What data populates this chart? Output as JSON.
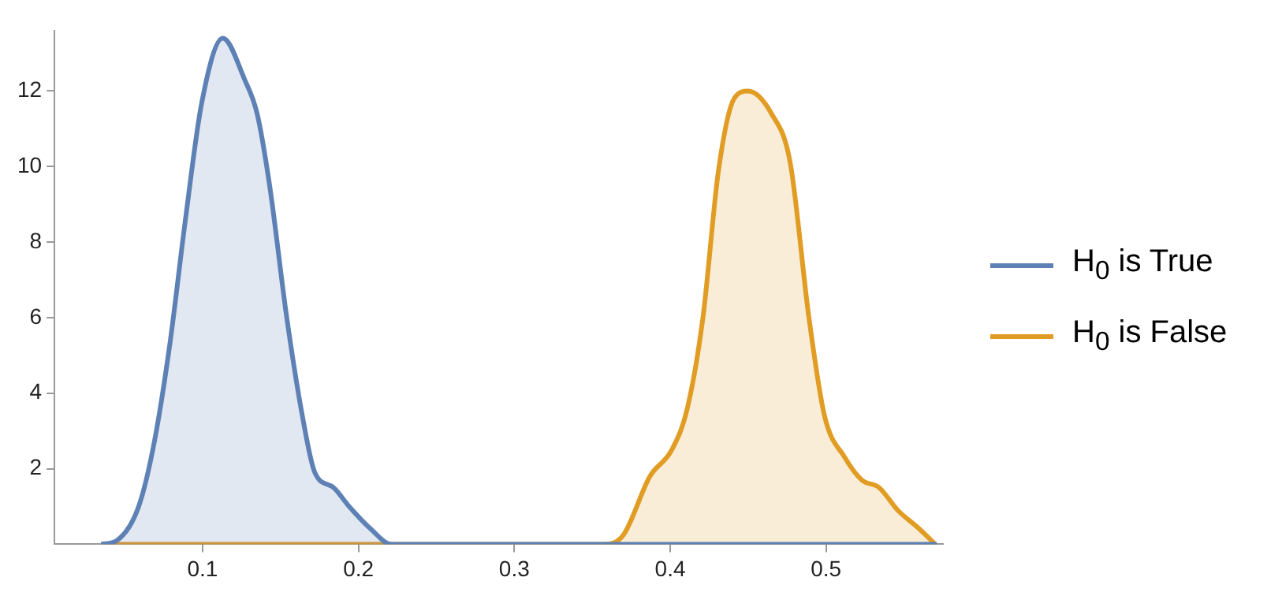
{
  "chart_data": {
    "type": "area",
    "xlim": [
      0.005,
      0.575
    ],
    "ylim": [
      0,
      13.6
    ],
    "xticks": [
      0.1,
      0.2,
      0.3,
      0.4,
      0.5
    ],
    "yticks": [
      2,
      4,
      6,
      8,
      10,
      12
    ],
    "grid": false,
    "legend": "right",
    "marker": "none",
    "line_style": "solid",
    "series": [
      {
        "name": "H$_{0}$ is True",
        "color": "#5e81b5",
        "x": [
          0.035,
          0.045,
          0.059,
          0.069,
          0.079,
          0.089,
          0.0995,
          0.113,
          0.127,
          0.135,
          0.143,
          0.154,
          0.164,
          0.172,
          0.184,
          0.194,
          0.208,
          0.221,
          0.571
        ],
        "values": [
          0,
          0.1,
          1.0,
          2.7,
          5.3,
          8.6,
          11.7,
          13.4,
          12.3,
          11.4,
          9.5,
          6.0,
          3.4,
          1.9,
          1.5,
          1.0,
          0.4,
          0,
          0
        ]
      },
      {
        "name": "H$_{0}$ is False",
        "color": "#e19c24",
        "x": [
          0.035,
          0.358,
          0.37,
          0.387,
          0.401,
          0.411,
          0.421,
          0.431,
          0.441,
          0.45,
          0.465,
          0.477,
          0.489,
          0.499,
          0.512,
          0.523,
          0.534,
          0.546,
          0.56,
          0.57
        ],
        "values": [
          0,
          0,
          0.25,
          1.8,
          2.5,
          3.6,
          6.0,
          9.9,
          11.8,
          12.0,
          11.4,
          10.1,
          6.0,
          3.4,
          2.3,
          1.7,
          1.5,
          0.9,
          0.4,
          0
        ]
      }
    ]
  }
}
